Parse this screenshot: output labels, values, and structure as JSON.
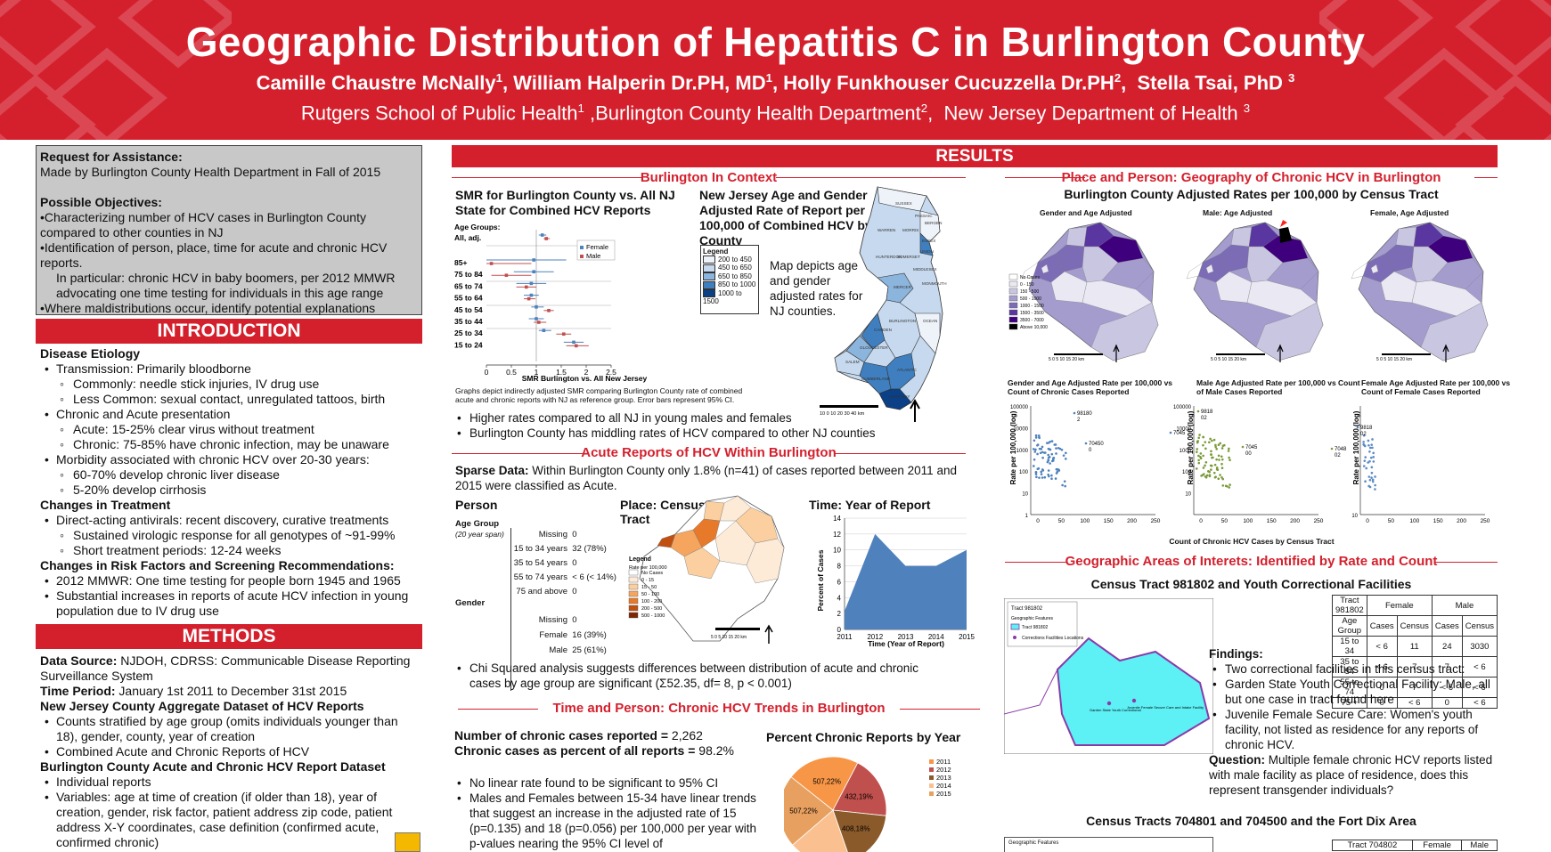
{
  "header": {
    "title": "Geographic Distribution of Hepatitis C in Burlington County",
    "authors": [
      {
        "name": "Camille Chaustre McNally",
        "sup": "1"
      },
      {
        "name": "William Halperin Dr.PH, MD",
        "sup": "1"
      },
      {
        "name": "Holly Funkhouser Cucuzzella Dr.PH",
        "sup": "2"
      },
      {
        "name": "Stella Tsai, PhD",
        "sup": "3"
      }
    ],
    "affiliations": [
      {
        "name": "Rutgers School of Public Health",
        "sup": "1"
      },
      {
        "name": "Burlington County Health Department",
        "sup": "2"
      },
      {
        "name": "New Jersey Department of Health",
        "sup": "3"
      }
    ],
    "colors": {
      "banner": "#d4202d",
      "text": "#ffffff"
    }
  },
  "request": {
    "heading": "Request for Assistance:",
    "made_by": "Made by Burlington County Health Department in Fall of 2015",
    "objectives_heading": "Possible Objectives:",
    "objectives": [
      "•Characterizing number of HCV cases in Burlington County compared to other counties in NJ",
      "•Identification of person, place, time for acute and chronic HCV reports.",
      "In particular: chronic HCV in baby boomers, per  2012 MMWR advocating one time testing for individuals in this age range",
      "•Where maldistributions occur, identify potential explanations"
    ]
  },
  "introduction": {
    "heading": "INTRODUCTION",
    "etiology_heading": "Disease Etiology",
    "transmission": "Transmission: Primarily bloodborne",
    "transmission_common": "Commonly: needle stick injuries, IV drug use",
    "transmission_less": "Less Common: sexual contact, unregulated tattoos, birth",
    "presentation": "Chronic and Acute presentation",
    "acute": "Acute: 15-25% clear virus without treatment",
    "chronic": "Chronic: 75-85% have chronic infection, may be unaware",
    "morbidity": "Morbidity associated with chronic HCV over 20-30 years:",
    "liver": "60-70% develop chronic liver disease",
    "cirrhosis": "5-20% develop cirrhosis",
    "treatment_heading": "Changes in Treatment",
    "daa": "Direct-acting antivirals: recent discovery, curative treatments",
    "svr": "Sustained virologic response for all genotypes of ~91-99%",
    "short": "Short treatment periods: 12-24 weeks",
    "risk_heading": "Changes in Risk Factors and Screening Recommendations:",
    "mmwr": "2012 MMWR: One time testing for people born 1945 and 1965",
    "increase": "Substantial increases in reports of acute HCV infection in young population due to IV drug use"
  },
  "methods": {
    "heading": "METHODS",
    "source_label": "Data Source:",
    "source": " NJDOH, CDRSS: Communicable Disease Reporting Surveillance System",
    "period_label": "Time Period:",
    "period": " January 1st 2011 to December 31st 2015",
    "nj_heading": "New Jersey County Aggregate Dataset of HCV Reports",
    "nj_counts": "Counts stratified by age group (omits individuals younger than 18), gender, county, year of creation",
    "nj_combined": "Combined Acute and Chronic Reports of HCV",
    "burl_heading": "Burlington County Acute and Chronic HCV Report Dataset",
    "burl_individual": "Individual reports",
    "burl_variables": "Variables: age at time of creation (if older than 18), year of creation, gender, risk factor, patient address zip code, patient address X-Y coordinates, case definition (confirmed acute, confirmed chronic)"
  },
  "results": {
    "heading": "RESULTS",
    "context": {
      "heading": "Burlington In Context",
      "smr_title": "SMR for Burlington County vs. All NJ State for Combined HCV Reports",
      "smr_caption": "Graphs depict indirectly adjusted SMR comparing Burlington County rate of combined acute and chronic reports with NJ as reference group. Error bars represent 95% CI.",
      "map_title": "New Jersey Age and Gender Adjusted Rate of Report per 100,000 of Combined HCV by County",
      "map_legend_title": "Legend",
      "map_legend": [
        "200 to 450",
        "450 to 650",
        "650 to 850",
        "850 to 1000",
        "1000 to 1500"
      ],
      "map_legend_colors": [
        "#eef3fa",
        "#c6d9ee",
        "#8cb5dd",
        "#3f7fbf",
        "#0b3f86"
      ],
      "map_desc": "Map depicts age and gender adjusted rates for NJ counties.",
      "counties": [
        "SUSSEX",
        "PASSAIC",
        "BERGEN",
        "WARREN",
        "MORRIS",
        "ESSEX",
        "UNION",
        "HUNTERDON",
        "SOMERSET",
        "MIDDLESEX",
        "MERCER",
        "MONMOUTH",
        "BURLINGTON",
        "OCEAN",
        "CAMDEN",
        "GLOUCESTER",
        "SALEM",
        "ATLANTIC",
        "CUMBERLAND",
        "CAPE MAY"
      ],
      "scale_label": "10  0   10  20  30  40 km",
      "bullets": [
        "Higher rates compared to all NJ in young males and females",
        "Burlington County has middling rates of HCV compared to other NJ counties"
      ]
    },
    "acute": {
      "heading": "Acute Reports of HCV Within Burlington",
      "sparse_label": "Sparse Data:",
      "sparse_text": " Within Burlington County only 1.8% (n=41) of cases reported between 2011 and 2015 were classified as Acute.",
      "person_heading": "Person",
      "age_group_label": "Age Group",
      "age_group_note": "(20 year span)",
      "age_rows": [
        {
          "label": "Missing",
          "value": "0"
        },
        {
          "label": "15 to 34 years",
          "value": "32 (78%)"
        },
        {
          "label": "35 to 54 years",
          "value": "0"
        },
        {
          "label": "55 to 74 years",
          "value": "< 6 (< 14%)"
        },
        {
          "label": "75 and above",
          "value": "0"
        }
      ],
      "gender_label": "Gender",
      "gender_rows": [
        {
          "label": "Missing",
          "value": "0"
        },
        {
          "label": "Female",
          "value": "16 (39%)"
        },
        {
          "label": "Male",
          "value": "25 (61%)"
        }
      ],
      "place_heading": "Place: Census Tract",
      "place_legend_title": "Legend",
      "place_legend_sub": "Rate per 100,000",
      "place_legend": [
        "No Cases",
        "0 - 15",
        "15 - 50",
        "50 - 100",
        "100 - 200",
        "200 - 500",
        "500 - 1000"
      ],
      "place_legend_colors": [
        "#ffffff",
        "#fdebd8",
        "#fbcf9f",
        "#f6a55e",
        "#e67a2a",
        "#c04f10",
        "#7f2704"
      ],
      "place_scale": "5  0   5   10   15   20 km",
      "time_heading": "Time: Year of Report",
      "chi_text": "Chi Squared analysis suggests differences between distribution of acute and chronic cases by age group are significant (Σ52.35, df= 8, p < 0.001)"
    },
    "chronic_trends": {
      "heading": "Time and Person: Chronic HCV Trends in Burlington",
      "num_label": "Number of chronic cases reported = ",
      "num_value": "2,262",
      "pct_label": "Chronic cases as percent of all reports = ",
      "pct_value": " 98.2%",
      "bullets": [
        "No linear rate found to be significant to 95% CI",
        "Males and Females between 15-34 have linear trends that suggest an increase in the adjusted rate of 15 (p=0.135) and 18 (p=0.056) per 100,000 per year with p-values nearing the 95% CI level of"
      ],
      "pie_title": "Percent Chronic Reports by Year"
    },
    "place_person": {
      "heading": "Place and Person: Geography of Chronic HCV in Burlington",
      "maps_title": "Burlington County Adjusted Rates per 100,000  by Census Tract",
      "map_titles": [
        "Gender and Age Adjusted",
        "Male: Age Adjusted",
        "Female,  Age Adjusted"
      ],
      "legend": [
        "No Cases",
        "0 - 150",
        "150 - 500",
        "500 - 1000",
        "1000 - 1500",
        "1500 - 3500",
        "3500 - 7000",
        "Above 10,000"
      ],
      "legend_colors": [
        "#ffffff",
        "#e9e8f3",
        "#c9c6e2",
        "#a39ccd",
        "#7c6cb6",
        "#5a37a0",
        "#3f007d",
        "#000000"
      ],
      "scale": "5  0   5   10   15   20 km",
      "scatter_titles": [
        "Gender and Age Adjusted Rate per 100,000 vs Count of Chronic Cases Reported",
        "Male Age Adjusted Rate per 100,000 vs Count of Male Cases Reported",
        "Female Age Adjusted Rate per 100,000 vs Count of Female Cases Reported"
      ],
      "scatter_ylabel": "Rate per 100,000 (log)",
      "scatter_xlabel": "Count of Chronic HCV  Cases by Census Tract"
    },
    "interest": {
      "heading": "Geographic Areas of Interets: Identified by Rate and Count",
      "tract1_title": "Census Tract 981802 and Youth Correctional Facilities",
      "map_labels": [
        "Tract 981802",
        "Geographic Features",
        "Tract 981802",
        "Corrections Facilities Locations"
      ],
      "facility_labels": [
        "Garden State Youth Correctional",
        "Juvenile Female Secure Care and Intake Facility"
      ],
      "table": {
        "title": "Tract 981802",
        "group_headers": [
          "Female",
          "Male"
        ],
        "col_headers": [
          "Age Group",
          "Cases",
          "Census",
          "Cases",
          "Census"
        ],
        "rows": [
          [
            "15 to 34",
            "< 6",
            "11",
            "24",
            "3030"
          ],
          [
            "35 to 54",
            "< 6",
            "7",
            "7",
            "< 6"
          ],
          [
            "55 to 74",
            "0",
            "7",
            "< 6",
            "< 6"
          ],
          [
            "75 +",
            "0",
            "< 6",
            "0",
            "< 6"
          ]
        ]
      },
      "findings_label": "Findings:",
      "findings": [
        "Two correctional facilities in this census tract:",
        "Garden State Youth Correctional Facility: Male, all but one case in tract found here",
        "Juvenile Female Secure Care: Women's youth facility, not listed as residence for any reports of chronic HCV."
      ],
      "question_label": "Question:",
      "question": " Multiple female chronic HCV  reports listed with male facility as place of residence, does this represent transgender individuals?",
      "tract2_title": "Census Tracts 704801 and 704500 and the Fort Dix Area",
      "tract2_map_label": "Geographic Features",
      "table2_title": "Tract 704802",
      "table2_headers": [
        "Female",
        "Male"
      ]
    }
  },
  "chart_data": [
    {
      "type": "scatter",
      "title": "SMR for Burlington County vs. All NJ State for Combined HCV Reports",
      "xlabel": "SMR Burlington vs. All New Jersey",
      "ylabel": "Age Groups:",
      "xlim": [
        0,
        2.5
      ],
      "xticks": [
        "0",
        "0.5",
        "1",
        "1.5",
        "2",
        "2.5"
      ],
      "categories": [
        "All, adj.",
        "85+",
        "75 to 84",
        "65 to 74",
        "55 to 64",
        "45 to 54",
        "35 to 44",
        "25 to 34",
        "15 to 24"
      ],
      "legend": "right",
      "series": [
        {
          "name": "Female",
          "color": "#4f81bd",
          "values": [
            1.12,
            0.95,
            0.95,
            0.9,
            0.9,
            1.0,
            1.0,
            1.15,
            1.75
          ],
          "lo": [
            1.05,
            0.0,
            0.55,
            0.6,
            0.75,
            0.9,
            0.85,
            1.05,
            1.55
          ],
          "hi": [
            1.2,
            1.6,
            1.35,
            1.2,
            1.05,
            1.15,
            1.15,
            1.3,
            1.95
          ]
        },
        {
          "name": "Male",
          "color": "#c0504d",
          "values": [
            1.2,
            0.1,
            0.4,
            0.8,
            0.85,
            1.25,
            1.05,
            1.55,
            1.8
          ],
          "lo": [
            1.15,
            0.0,
            0.1,
            0.6,
            0.75,
            1.15,
            0.95,
            1.4,
            1.6
          ],
          "hi": [
            1.27,
            0.9,
            0.9,
            1.0,
            0.98,
            1.35,
            1.2,
            1.7,
            2.05
          ]
        }
      ]
    },
    {
      "type": "area",
      "title": "Time: Year of Report",
      "xlabel": "Time (Year of Report)",
      "ylabel": "Percent of Cases",
      "x": [
        "2011",
        "2012",
        "2013",
        "2014",
        "2015"
      ],
      "values": [
        2.3,
        12,
        8,
        8,
        10
      ],
      "ylim": [
        0,
        14
      ],
      "yticks": [
        0,
        2,
        4,
        6,
        8,
        10,
        12,
        14
      ],
      "color": "#4f81bd"
    },
    {
      "type": "pie",
      "title": "Percent Chronic Reports by Year",
      "categories": [
        "2011",
        "2012",
        "2013",
        "2014",
        "2015"
      ],
      "labels": [
        "507,22%",
        "432,19%",
        "408,18%",
        "",
        "507,22%"
      ],
      "values": [
        22,
        19,
        18,
        19,
        22
      ],
      "colors": [
        "#f79646",
        "#c0504d",
        "#8b5a2b",
        "#fac090",
        "#e8a060"
      ],
      "legend": "right"
    }
  ]
}
